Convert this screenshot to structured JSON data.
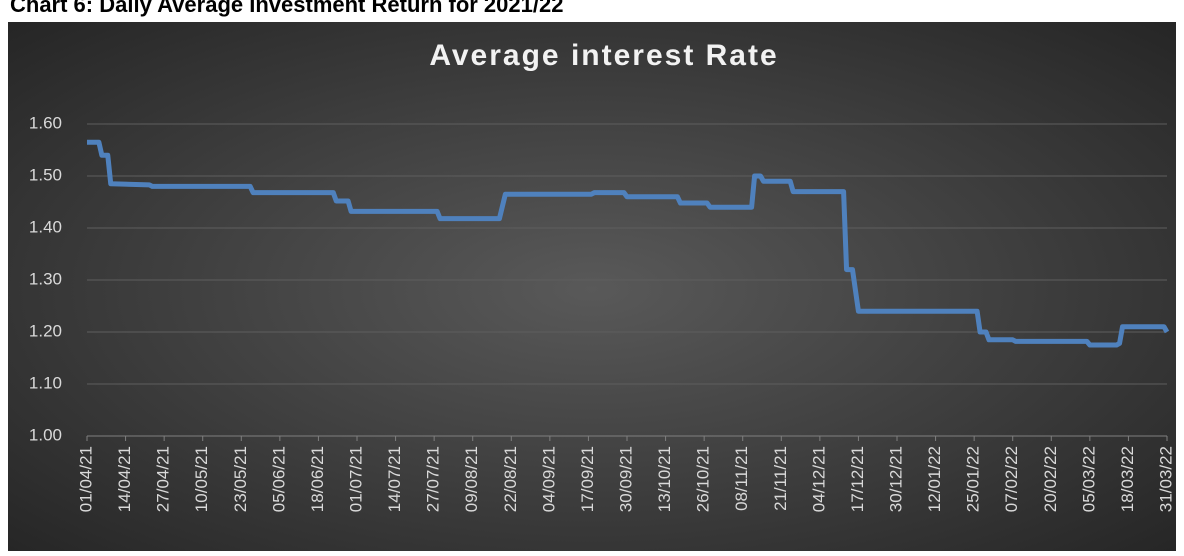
{
  "page_title": "Chart 6: Daily Average Investment Return for 2021/22",
  "chart_data": {
    "type": "line",
    "title": "Average interest Rate",
    "x": [
      "01/04/21",
      "05/04/21",
      "06/04/21",
      "08/04/21",
      "09/04/21",
      "22/04/21",
      "23/04/21",
      "26/05/21",
      "27/05/21",
      "23/06/21",
      "24/06/21",
      "28/06/21",
      "29/06/21",
      "28/07/21",
      "29/07/21",
      "18/08/21",
      "20/08/21",
      "18/09/21",
      "19/09/21",
      "29/09/21",
      "30/09/21",
      "17/10/21",
      "18/10/21",
      "27/10/21",
      "28/10/21",
      "11/11/21",
      "12/11/21",
      "14/11/21",
      "15/11/21",
      "24/11/21",
      "25/11/21",
      "12/12/21",
      "13/12/21",
      "15/12/21",
      "17/12/21",
      "26/01/22",
      "27/01/22",
      "29/01/22",
      "30/01/22",
      "07/02/22",
      "08/02/22",
      "04/03/22",
      "05/03/22",
      "14/03/22",
      "15/03/22",
      "16/03/22",
      "30/03/22",
      "31/03/22"
    ],
    "series": [
      {
        "color": "#4f81bd",
        "values": [
          1.565,
          1.565,
          1.54,
          1.54,
          1.485,
          1.483,
          1.48,
          1.48,
          1.468,
          1.468,
          1.452,
          1.452,
          1.432,
          1.432,
          1.418,
          1.418,
          1.465,
          1.465,
          1.468,
          1.468,
          1.46,
          1.46,
          1.448,
          1.448,
          1.44,
          1.44,
          1.5,
          1.5,
          1.49,
          1.49,
          1.47,
          1.47,
          1.32,
          1.32,
          1.24,
          1.24,
          1.2,
          1.2,
          1.185,
          1.185,
          1.182,
          1.182,
          1.175,
          1.175,
          1.178,
          1.21,
          1.21,
          1.2
        ]
      }
    ],
    "xlim": [
      "01/04/21",
      "31/03/22"
    ],
    "xticks": [
      "01/04/21",
      "14/04/21",
      "27/04/21",
      "10/05/21",
      "23/05/21",
      "05/06/21",
      "18/06/21",
      "01/07/21",
      "14/07/21",
      "27/07/21",
      "09/08/21",
      "22/08/21",
      "04/09/21",
      "17/09/21",
      "30/09/21",
      "13/10/21",
      "26/10/21",
      "08/11/21",
      "21/11/21",
      "04/12/21",
      "17/12/21",
      "30/12/21",
      "12/01/22",
      "25/01/22",
      "07/02/22",
      "20/02/22",
      "05/03/22",
      "18/03/22",
      "31/03/22"
    ],
    "ylim": [
      1.0,
      1.6
    ],
    "yticks": [
      {
        "value": 1.0,
        "label": "1.00"
      },
      {
        "value": 1.1,
        "label": "1.10"
      },
      {
        "value": 1.2,
        "label": "1.20"
      },
      {
        "value": 1.3,
        "label": "1.30"
      },
      {
        "value": 1.4,
        "label": "1.40"
      },
      {
        "value": 1.5,
        "label": "1.50"
      },
      {
        "value": 1.6,
        "label": "1.60"
      }
    ],
    "grid": true
  }
}
